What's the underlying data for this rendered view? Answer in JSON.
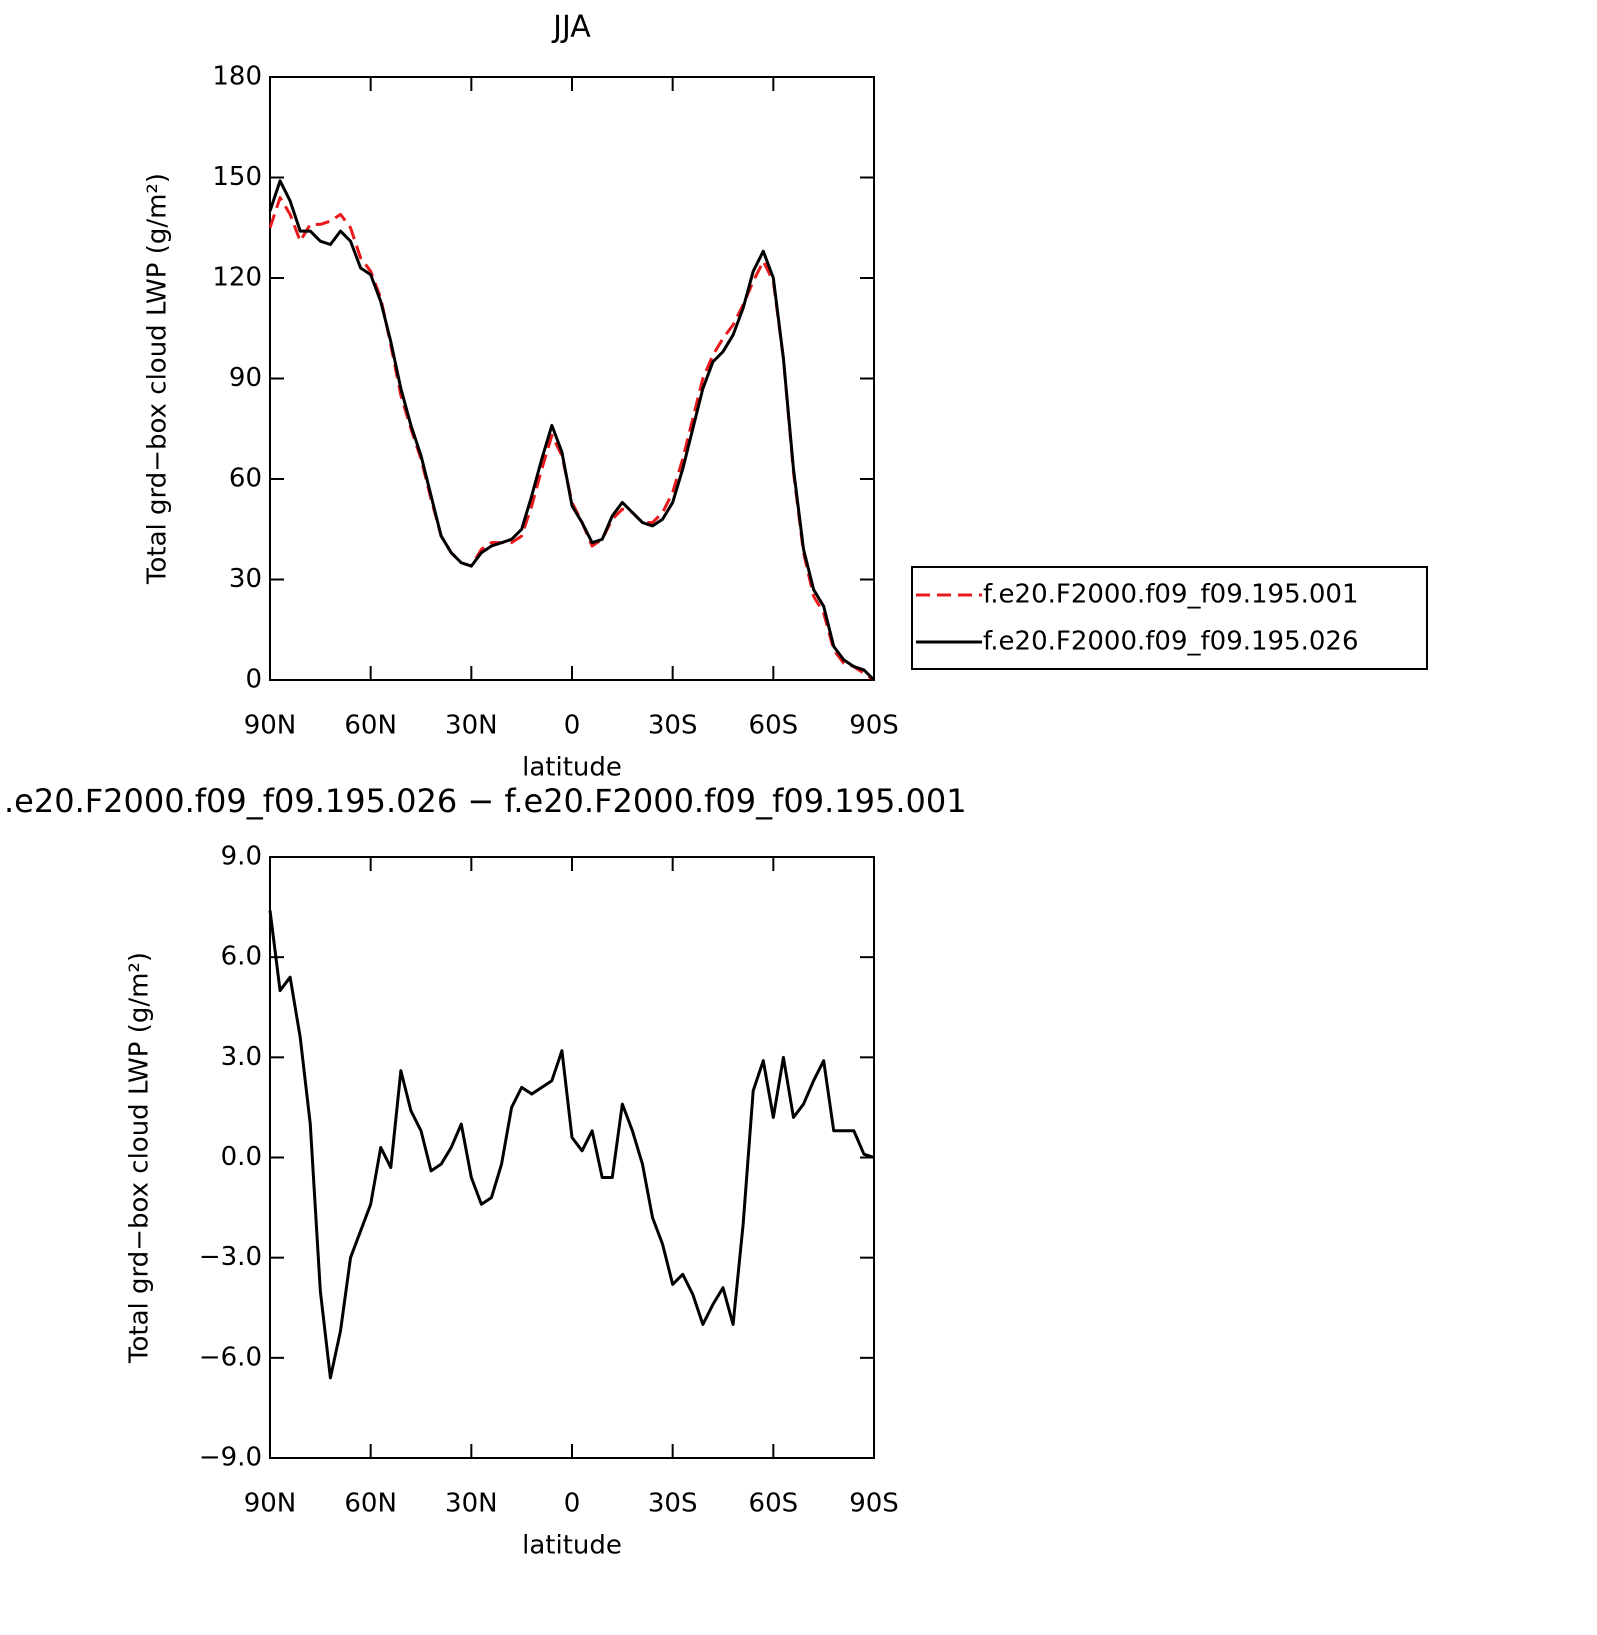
{
  "chart_data": [
    {
      "type": "line",
      "title": "JJA",
      "xlabel": "latitude",
      "ylabel": "Total grd−box cloud LWP (g/m²)",
      "x": [
        90,
        87,
        84,
        81,
        78,
        75,
        72,
        69,
        66,
        63,
        60,
        57,
        54,
        51,
        48,
        45,
        42,
        39,
        36,
        33,
        30,
        27,
        24,
        21,
        18,
        15,
        12,
        9,
        6,
        3,
        0,
        -3,
        -6,
        -9,
        -12,
        -15,
        -18,
        -21,
        -24,
        -27,
        -30,
        -33,
        -36,
        -39,
        -42,
        -45,
        -48,
        -51,
        -54,
        -57,
        -60,
        -63,
        -66,
        -69,
        -72,
        -75,
        -78,
        -81,
        -84,
        -87,
        -90
      ],
      "series": [
        {
          "name": "f.e20.F2000.f09_f09.195.001",
          "color": "#e8191b",
          "dash": true,
          "values": [
            135,
            144,
            139,
            131,
            136,
            136,
            137,
            139,
            135,
            126,
            122,
            114,
            100,
            85,
            75,
            66,
            54,
            43,
            38,
            35,
            34,
            39,
            41,
            41,
            41,
            43,
            52,
            63,
            73,
            67,
            53,
            47,
            40,
            42,
            48,
            51,
            50,
            47,
            47,
            50,
            56,
            66,
            78,
            90,
            97,
            102,
            106,
            112,
            119,
            125,
            119,
            96,
            62,
            38,
            25,
            20,
            9,
            5,
            4,
            2,
            0
          ]
        },
        {
          "name": "f.e20.F2000.f09_f09.195.026",
          "color": "#000000",
          "dash": false,
          "values": [
            140,
            149,
            143,
            134,
            134,
            131,
            130,
            134,
            131,
            123,
            121,
            113,
            101,
            87,
            76,
            67,
            55,
            43,
            38,
            35,
            34,
            38,
            40,
            41,
            42,
            45,
            55,
            66,
            76,
            68,
            52,
            47,
            41,
            42,
            49,
            53,
            50,
            47,
            46,
            48,
            53,
            63,
            75,
            87,
            95,
            98,
            103,
            111,
            122,
            128,
            120,
            96,
            63,
            39,
            27,
            22,
            10,
            6,
            4,
            3,
            0
          ]
        }
      ],
      "xlim": [
        90,
        -90
      ],
      "xticks": [
        {
          "value": 90,
          "label": "90N"
        },
        {
          "value": 60,
          "label": "60N"
        },
        {
          "value": 30,
          "label": "30N"
        },
        0,
        {
          "value": -30,
          "label": "30S"
        },
        {
          "value": -60,
          "label": "60S"
        },
        {
          "value": -90,
          "label": "90S"
        }
      ],
      "ylim": [
        0,
        180
      ],
      "yticks": [
        0,
        30,
        60,
        90,
        120,
        150,
        180
      ],
      "legend": "right"
    },
    {
      "type": "line",
      "title": ".e20.F2000.f09_f09.195.026 − f.e20.F2000.f09_f09.195.001",
      "xlabel": "latitude",
      "ylabel": "Total grd−box cloud LWP (g/m²)",
      "x": [
        90,
        87,
        84,
        81,
        78,
        75,
        72,
        69,
        66,
        63,
        60,
        57,
        54,
        51,
        48,
        45,
        42,
        39,
        36,
        33,
        30,
        27,
        24,
        21,
        18,
        15,
        12,
        9,
        6,
        3,
        0,
        -3,
        -6,
        -9,
        -12,
        -15,
        -18,
        -21,
        -24,
        -27,
        -30,
        -33,
        -36,
        -39,
        -42,
        -45,
        -48,
        -51,
        -54,
        -57,
        -60,
        -63,
        -66,
        -69,
        -72,
        -75,
        -78,
        -81,
        -84,
        -87,
        -90
      ],
      "series": [
        {
          "color": "#000000",
          "dash": false,
          "values": [
            7.4,
            5.0,
            5.4,
            3.6,
            1.0,
            -4.0,
            -6.6,
            -5.2,
            -3.0,
            -2.2,
            -1.4,
            0.3,
            -0.3,
            2.6,
            1.4,
            0.8,
            -0.4,
            -0.2,
            0.3,
            1.0,
            -0.6,
            -1.4,
            -1.2,
            -0.2,
            1.5,
            2.1,
            1.9,
            2.1,
            2.3,
            3.2,
            0.6,
            0.2,
            0.8,
            -0.6,
            -0.6,
            1.6,
            0.8,
            -0.2,
            -1.8,
            -2.6,
            -3.8,
            -3.5,
            -4.1,
            -5.0,
            -4.4,
            -3.9,
            -5.0,
            -2.0,
            2.0,
            2.9,
            1.2,
            3.0,
            1.2,
            1.6,
            2.3,
            2.9,
            0.8,
            0.8,
            0.8,
            0.1,
            0.0
          ]
        }
      ],
      "xlim": [
        90,
        -90
      ],
      "xticks": [
        {
          "value": 90,
          "label": "90N"
        },
        {
          "value": 60,
          "label": "60N"
        },
        {
          "value": 30,
          "label": "30N"
        },
        0,
        {
          "value": -30,
          "label": "30S"
        },
        {
          "value": -60,
          "label": "60S"
        },
        {
          "value": -90,
          "label": "90S"
        }
      ],
      "ylim": [
        -9,
        9
      ],
      "yticks": [
        {
          "value": -9,
          "label": "−9.0"
        },
        {
          "value": -6,
          "label": "−6.0"
        },
        {
          "value": -3,
          "label": "−3.0"
        },
        {
          "value": 0,
          "label": "0.0"
        },
        {
          "value": 3,
          "label": "3.0"
        },
        {
          "value": 6,
          "label": "6.0"
        },
        {
          "value": 9,
          "label": "9.0"
        }
      ]
    }
  ]
}
